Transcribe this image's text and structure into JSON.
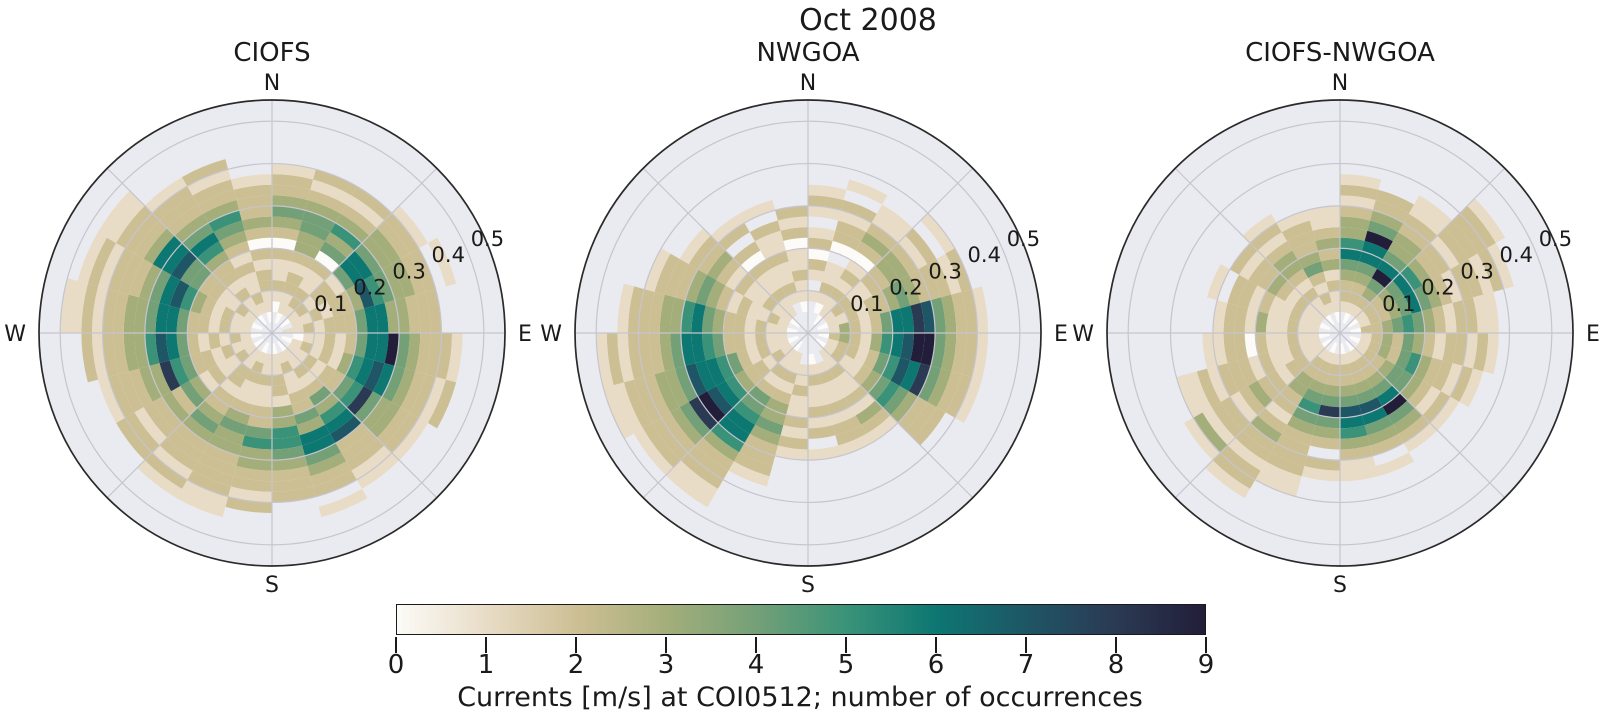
{
  "chart_data": {
    "type": "polar-2d-histogram",
    "figure_title": "Oct 2008",
    "encoding": "grid: one string per direction bin, bins of dir_bin_deg degrees starting at North going clockwise; each character is one radial bin of width r_bin (m/s) from the center outward; '.' = no data, digit 0-9 = number of occurrences (colormap value)",
    "rmax": 0.55,
    "dir_bin_deg": 15,
    "r_bin": 0.025,
    "r_tick_values": [
      0.1,
      0.2,
      0.3,
      0.4,
      0.5
    ],
    "r_tick_labels": [
      "0.1",
      "0.2",
      "0.3",
      "0.4",
      "0.5"
    ],
    "compass": {
      "n": "N",
      "e": "E",
      "s": "S",
      "w": "W"
    },
    "plots": [
      {
        "title": "CIOFS",
        "grid": [
          "..01211202343221....",
          ".011221233443212....",
          "..12211204353212....",
          ".0121221466433221...",
          "..11212237543322.1..",
          ".112122246633222....",
          "..0112124669432221..",
          ".01212135676432212..",
          "..112122458433221...",
          ".0112124356722211...",
          "..12112243664322.1..",
          ".011221335543222....",
          "..112112245332212...",
          ".01221123433222211..",
          "..1122122343222121..",
          ".0121121342322122...",
          "..112122458332221...",
          ".01212124675332212..",
          "..112122466433221211",
          ".011212357643222121.",
          "..12112244766322211.",
          ".0112122356432221...",
          "..121121234532212...",
          ".01122120232221....."
        ]
      },
      {
        "title": "NWGOA",
        "grid": [
          "...1.12021.121......",
          "..01211.02212.1.....",
          ".0112121023211......",
          "..122112233212.1....",
          ".011212234322212....",
          "..132124668743221...",
          ".0232135679943221...",
          "..122124576843221...",
          ".01211234543222.....",
          "..1121121321........",
          "...121121221........",
          "..01211212.1........",
          "...112112121........",
          "..1121233432221.....",
          ".011212445665322211.",
          "..12122356798432221.",
          ".0112124566743322211",
          "..112122456643222121",
          ".01121223465332221..",
          "..12112123432221....",
          ".0112112123221......",
          "..11211202.21.......",
          "...12112112.1.......",
          "..0112110212........"
        ]
      },
      {
        "title": "CIOFS-NWGOA",
        "grid": [
          "..1223465332121.....",
          ".0122346694322......",
          "..1234964332211.....",
          ".01223465322122221..",
          "..122346432122121...",
          ".02234543212211.....",
          "..1232432122121.....",
          ".0123245322121......",
          "..12234432121.......",
          ".012234694321.......",
          "..1223476432.1......",
          ".0122347653211......",
          "..122348432.21......",
          ".012234543222211....",
          "..1223322123221221..",
          ".0112212232122131...",
          "..11211212221211....",
          ".011211202211.......",
          "..1121131221........",
          ".0112112122.1.......",
          "..1121232212........",
          ".011212332121.......",
          "..1212432221........",
          ".01121323211........"
        ]
      }
    ],
    "colorbar": {
      "min": 0,
      "max": 9,
      "tick_labels": [
        "0",
        "1",
        "2",
        "3",
        "4",
        "5",
        "6",
        "7",
        "8",
        "9"
      ],
      "label": "Currents [m/s] at COI0512; number of occurrences",
      "colors": [
        "#fcfbf7",
        "#e8dcc6",
        "#cdbf94",
        "#a4ae7a",
        "#74a078",
        "#3a9378",
        "#0d7772",
        "#1e5666",
        "#2b3a53",
        "#221e39"
      ]
    },
    "style": {
      "axes_background": "#eaeaf1",
      "gridline_color": "#c6c5cd",
      "outline_color": "#2a2a2a",
      "text_color": "#1a1a1a"
    }
  }
}
